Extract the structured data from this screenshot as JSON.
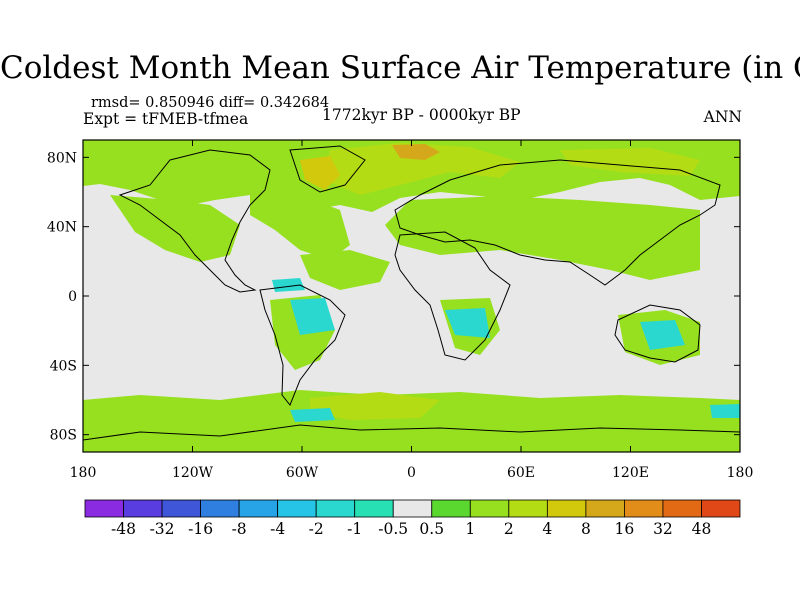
{
  "title": "Coldest Month Mean Surface Air Temperature (in C)",
  "stats": "rmsd= 0.850946 diff= 0.342684",
  "experiment": "Expt = tFMEB-tfmea",
  "period": "1772kyr BP - 0000kyr BP",
  "season": "ANN",
  "map": {
    "lon_range": [
      -180,
      180
    ],
    "lat_range": [
      -90,
      90
    ],
    "background_color": "#e8e8e8",
    "x_ticks": [
      {
        "value": -180,
        "label": "180"
      },
      {
        "value": -120,
        "label": "120W"
      },
      {
        "value": -60,
        "label": "60W"
      },
      {
        "value": 0,
        "label": "0"
      },
      {
        "value": 60,
        "label": "60E"
      },
      {
        "value": 120,
        "label": "120E"
      },
      {
        "value": 180,
        "label": "180"
      }
    ],
    "y_ticks": [
      {
        "value": 80,
        "label": "80N"
      },
      {
        "value": 40,
        "label": "40N"
      },
      {
        "value": 0,
        "label": "0"
      },
      {
        "value": -40,
        "label": "40S"
      },
      {
        "value": -80,
        "label": "80S"
      }
    ]
  },
  "colorbar": {
    "colors": [
      "#8a2be2",
      "#5a3de0",
      "#3f56d8",
      "#2f7fe0",
      "#27a4e8",
      "#26c4e6",
      "#2ad8cf",
      "#27e0b4",
      "#e8e8e8",
      "#5ad830",
      "#96e020",
      "#b4dc14",
      "#d2c80c",
      "#d4a81a",
      "#e28c1a",
      "#e26a14",
      "#e04818"
    ],
    "labels": [
      "-48",
      "-32",
      "-16",
      "-8",
      "-4",
      "-2",
      "-1",
      "-0.5",
      "0.5",
      "1",
      "2",
      "4",
      "8",
      "16",
      "32",
      "48"
    ]
  }
}
